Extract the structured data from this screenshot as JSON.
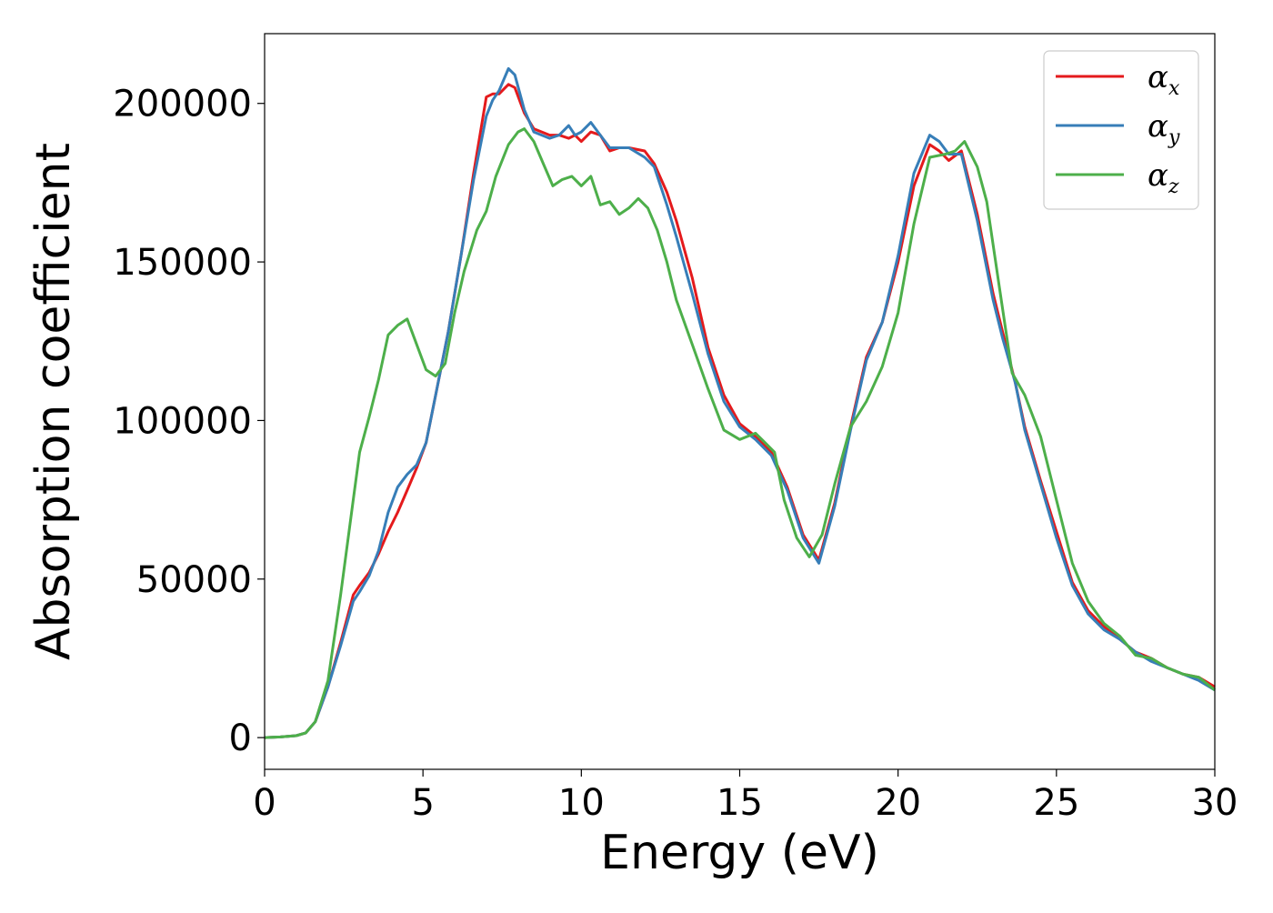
{
  "chart_data": {
    "type": "line",
    "xlabel": "Energy (eV)",
    "ylabel": "Absorption coefficient",
    "xlim": [
      0,
      30
    ],
    "ylim": [
      -10000,
      222000
    ],
    "xticks": [
      0,
      5,
      10,
      15,
      20,
      25,
      30
    ],
    "xtick_labels": [
      "0",
      "5",
      "10",
      "15",
      "20",
      "25",
      "30"
    ],
    "yticks": [
      0,
      50000,
      100000,
      150000,
      200000
    ],
    "ytick_labels": [
      "0",
      "50000",
      "100000",
      "150000",
      "200000"
    ],
    "grid": false,
    "legend_position": "top-right",
    "series": [
      {
        "name": "αx",
        "legend_base": "α",
        "legend_sub": "x",
        "color": "#e41a1c",
        "x": [
          0,
          0.5,
          1,
          1.3,
          1.6,
          2,
          2.4,
          2.8,
          3,
          3.3,
          3.6,
          3.9,
          4.2,
          4.5,
          4.8,
          5.1,
          5.4,
          5.8,
          6.2,
          6.6,
          7,
          7.2,
          7.4,
          7.7,
          7.9,
          8.2,
          8.5,
          9,
          9.3,
          9.6,
          9.8,
          10,
          10.3,
          10.6,
          10.9,
          11.2,
          11.5,
          12,
          12.3,
          12.7,
          13,
          13.5,
          14,
          14.5,
          15,
          15.5,
          16,
          16.5,
          17,
          17.5,
          18,
          18.5,
          19,
          19.5,
          20,
          20.5,
          21,
          21.3,
          21.6,
          22,
          22.5,
          23,
          23.3,
          23.7,
          24,
          24.5,
          25,
          25.5,
          26,
          26.5,
          27,
          27.5,
          28,
          28.5,
          29,
          29.5,
          30
        ],
        "y": [
          0,
          200,
          600,
          1500,
          5000,
          16000,
          30000,
          45000,
          48000,
          52000,
          58000,
          65000,
          71000,
          78000,
          85000,
          93000,
          108000,
          128000,
          152000,
          178000,
          202000,
          203000,
          203000,
          206000,
          205000,
          197000,
          192000,
          190000,
          190000,
          189000,
          190000,
          188000,
          191000,
          190000,
          185000,
          186000,
          186000,
          185000,
          181000,
          172000,
          163000,
          145000,
          123000,
          108000,
          99000,
          95000,
          90000,
          79000,
          64000,
          56000,
          74000,
          98000,
          120000,
          131000,
          150000,
          174000,
          187000,
          185000,
          182000,
          185000,
          165000,
          140000,
          128000,
          112000,
          98000,
          81000,
          65000,
          49000,
          40000,
          35000,
          31000,
          27000,
          25000,
          22000,
          20000,
          19000,
          16000
        ]
      },
      {
        "name": "αy",
        "legend_base": "α",
        "legend_sub": "y",
        "color": "#377eb8",
        "x": [
          0,
          0.5,
          1,
          1.3,
          1.6,
          2,
          2.4,
          2.8,
          3,
          3.3,
          3.6,
          3.9,
          4.2,
          4.5,
          4.8,
          5.1,
          5.4,
          5.8,
          6.2,
          6.6,
          7,
          7.2,
          7.4,
          7.7,
          7.9,
          8.2,
          8.5,
          9,
          9.3,
          9.6,
          9.8,
          10,
          10.3,
          10.6,
          10.9,
          11.2,
          11.5,
          12,
          12.3,
          12.7,
          13,
          13.5,
          14,
          14.5,
          15,
          15.5,
          16,
          16.5,
          17,
          17.5,
          18,
          18.5,
          19,
          19.5,
          20,
          20.5,
          21,
          21.3,
          21.6,
          22,
          22.5,
          23,
          23.3,
          23.7,
          24,
          24.5,
          25,
          25.5,
          26,
          26.5,
          27,
          27.5,
          28,
          28.5,
          29,
          29.5,
          30
        ],
        "y": [
          0,
          200,
          600,
          1500,
          5000,
          16000,
          29000,
          43000,
          46000,
          51000,
          59000,
          71000,
          79000,
          83000,
          86000,
          93000,
          108000,
          128000,
          152000,
          176000,
          196000,
          201000,
          204000,
          211000,
          209000,
          198000,
          191000,
          189000,
          190000,
          193000,
          190000,
          191000,
          194000,
          190000,
          186000,
          186000,
          186000,
          183000,
          180000,
          168000,
          158000,
          140000,
          121000,
          106000,
          98000,
          94000,
          89000,
          78000,
          63000,
          55000,
          73000,
          97000,
          119000,
          131000,
          152000,
          178000,
          190000,
          188000,
          184000,
          184000,
          163000,
          138000,
          126000,
          112000,
          97000,
          80000,
          63000,
          48000,
          39000,
          34000,
          31000,
          27000,
          24000,
          22000,
          20000,
          18000,
          15000
        ]
      },
      {
        "name": "αz",
        "legend_base": "α",
        "legend_sub": "z",
        "color": "#4daf4a",
        "x": [
          0,
          0.5,
          1,
          1.3,
          1.6,
          2,
          2.4,
          2.8,
          3,
          3.3,
          3.6,
          3.9,
          4.2,
          4.5,
          4.8,
          5.1,
          5.4,
          5.7,
          6,
          6.3,
          6.7,
          7,
          7.3,
          7.7,
          8,
          8.2,
          8.5,
          8.8,
          9.1,
          9.4,
          9.7,
          10,
          10.3,
          10.6,
          10.9,
          11.2,
          11.5,
          11.8,
          12.1,
          12.4,
          12.7,
          13,
          13.5,
          14,
          14.5,
          15,
          15.5,
          15.8,
          16.1,
          16.4,
          16.8,
          17.2,
          17.6,
          18,
          18.5,
          19,
          19.5,
          20,
          20.5,
          21,
          21.5,
          21.8,
          22.1,
          22.5,
          22.8,
          23.2,
          23.6,
          24,
          24.5,
          25,
          25.5,
          26,
          26.5,
          27,
          27.5,
          28,
          28.5,
          29,
          29.5,
          30
        ],
        "y": [
          0,
          200,
          600,
          1500,
          5000,
          18000,
          45000,
          75000,
          90000,
          101000,
          113000,
          127000,
          130000,
          132000,
          124000,
          116000,
          114000,
          118000,
          134000,
          147000,
          160000,
          166000,
          177000,
          187000,
          191000,
          192000,
          188000,
          181000,
          174000,
          176000,
          177000,
          174000,
          177000,
          168000,
          169000,
          165000,
          167000,
          170000,
          167000,
          160000,
          150000,
          138000,
          124000,
          110000,
          97000,
          94000,
          96000,
          93000,
          90000,
          75000,
          63000,
          57000,
          64000,
          80000,
          98000,
          106000,
          117000,
          134000,
          162000,
          183000,
          184000,
          185000,
          188000,
          180000,
          169000,
          142000,
          115000,
          108000,
          95000,
          75000,
          55000,
          43000,
          36000,
          32000,
          26000,
          25000,
          22000,
          20000,
          19000,
          15000
        ]
      }
    ]
  }
}
